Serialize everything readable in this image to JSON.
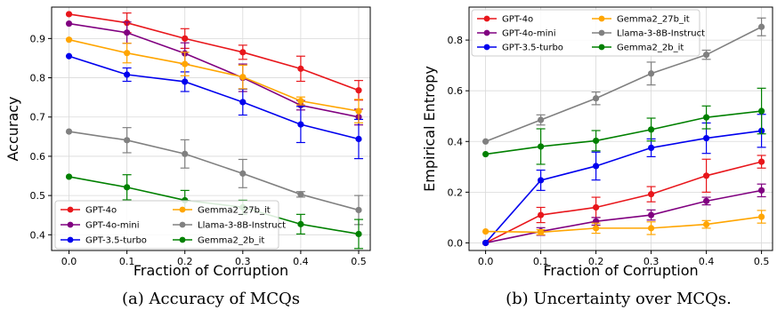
{
  "chart_data": [
    {
      "type": "line",
      "title": "",
      "caption": "(a) Accuracy of MCQs",
      "xlabel": "Fraction of Corruption",
      "ylabel": "Accuracy",
      "xlim": [
        -0.03,
        0.52
      ],
      "ylim": [
        0.36,
        0.98
      ],
      "xticks": [
        0.0,
        0.1,
        0.2,
        0.3,
        0.4,
        0.5
      ],
      "yticks": [
        0.4,
        0.5,
        0.6,
        0.7,
        0.8,
        0.9
      ],
      "xtick_labels": [
        "0.0",
        "0.1",
        "0.2",
        "0.3",
        "0.4",
        "0.5"
      ],
      "ytick_labels": [
        "0.4",
        "0.5",
        "0.6",
        "0.7",
        "0.8",
        "0.9"
      ],
      "grid": true,
      "legend": "lower-left, 2 columns",
      "x": [
        0.0,
        0.1,
        0.2,
        0.3,
        0.4,
        0.5
      ],
      "series": [
        {
          "name": "GPT-4o",
          "color": "#e8161b",
          "values": [
            0.962,
            0.94,
            0.9,
            0.865,
            0.823,
            0.768
          ],
          "errors": [
            0.0,
            0.025,
            0.025,
            0.018,
            0.032,
            0.025
          ]
        },
        {
          "name": "GPT-4o-mini",
          "color": "#800080",
          "values": [
            0.938,
            0.915,
            0.862,
            0.8,
            0.73,
            0.7
          ],
          "errors": [
            0.0,
            0.027,
            0.027,
            0.035,
            0.012,
            0.02
          ]
        },
        {
          "name": "GPT-3.5-turbo",
          "color": "#0000ee",
          "values": [
            0.855,
            0.808,
            0.79,
            0.738,
            0.681,
            0.644
          ],
          "errors": [
            0.0,
            0.017,
            0.025,
            0.033,
            0.046,
            0.05
          ]
        },
        {
          "name": "Gemma2_27b_it",
          "color": "#ffa500",
          "values": [
            0.897,
            0.863,
            0.835,
            0.802,
            0.741,
            0.715
          ],
          "errors": [
            0.0,
            0.025,
            0.03,
            0.03,
            0.01,
            0.03
          ]
        },
        {
          "name": "Llama-3-8B-Instruct",
          "color": "#808080",
          "values": [
            0.663,
            0.641,
            0.606,
            0.556,
            0.503,
            0.463
          ],
          "errors": [
            0.0,
            0.032,
            0.036,
            0.036,
            0.007,
            0.037
          ]
        },
        {
          "name": "Gemma2_2b_it",
          "color": "#008000",
          "values": [
            0.548,
            0.521,
            0.488,
            0.47,
            0.427,
            0.402
          ],
          "errors": [
            0.0,
            0.032,
            0.025,
            0.018,
            0.025,
            0.037
          ]
        }
      ]
    },
    {
      "type": "line",
      "title": "",
      "caption": "(b) Uncertainty over MCQs.",
      "xlabel": "Fraction of Corruption",
      "ylabel": "Empirical Entropy",
      "xlim": [
        -0.03,
        0.52
      ],
      "ylim": [
        -0.03,
        0.93
      ],
      "xticks": [
        0.0,
        0.1,
        0.2,
        0.3,
        0.4,
        0.5
      ],
      "yticks": [
        0.0,
        0.2,
        0.4,
        0.6,
        0.8
      ],
      "xtick_labels": [
        "0.0",
        "0.1",
        "0.2",
        "0.3",
        "0.4",
        "0.5"
      ],
      "ytick_labels": [
        "0.0",
        "0.2",
        "0.4",
        "0.6",
        "0.8"
      ],
      "grid": true,
      "legend": "upper-left, 2 columns",
      "x": [
        0.0,
        0.1,
        0.2,
        0.3,
        0.4,
        0.5
      ],
      "series": [
        {
          "name": "GPT-4o",
          "color": "#e8161b",
          "values": [
            0.0,
            0.11,
            0.14,
            0.192,
            0.265,
            0.32
          ],
          "errors": [
            0.0,
            0.03,
            0.04,
            0.03,
            0.065,
            0.025
          ]
        },
        {
          "name": "GPT-4o-mini",
          "color": "#800080",
          "values": [
            0.0,
            0.045,
            0.085,
            0.11,
            0.165,
            0.207
          ],
          "errors": [
            0.0,
            0.015,
            0.015,
            0.02,
            0.015,
            0.025
          ]
        },
        {
          "name": "GPT-3.5-turbo",
          "color": "#0000ee",
          "values": [
            0.0,
            0.247,
            0.303,
            0.375,
            0.413,
            0.442
          ],
          "errors": [
            0.0,
            0.04,
            0.055,
            0.035,
            0.06,
            0.065
          ]
        },
        {
          "name": "Gemma2_27b_it",
          "color": "#ffa500",
          "values": [
            0.045,
            0.042,
            0.058,
            0.058,
            0.073,
            0.103
          ],
          "errors": [
            0.0,
            0.01,
            0.02,
            0.025,
            0.015,
            0.025
          ]
        },
        {
          "name": "Llama-3-8B-Instruct",
          "color": "#808080",
          "values": [
            0.4,
            0.485,
            0.57,
            0.668,
            0.742,
            0.852
          ],
          "errors": [
            0.0,
            0.02,
            0.025,
            0.045,
            0.018,
            0.035
          ]
        },
        {
          "name": "Gemma2_2b_it",
          "color": "#008000",
          "values": [
            0.35,
            0.38,
            0.403,
            0.447,
            0.495,
            0.52
          ],
          "errors": [
            0.0,
            0.07,
            0.04,
            0.045,
            0.045,
            0.09
          ]
        }
      ]
    }
  ]
}
